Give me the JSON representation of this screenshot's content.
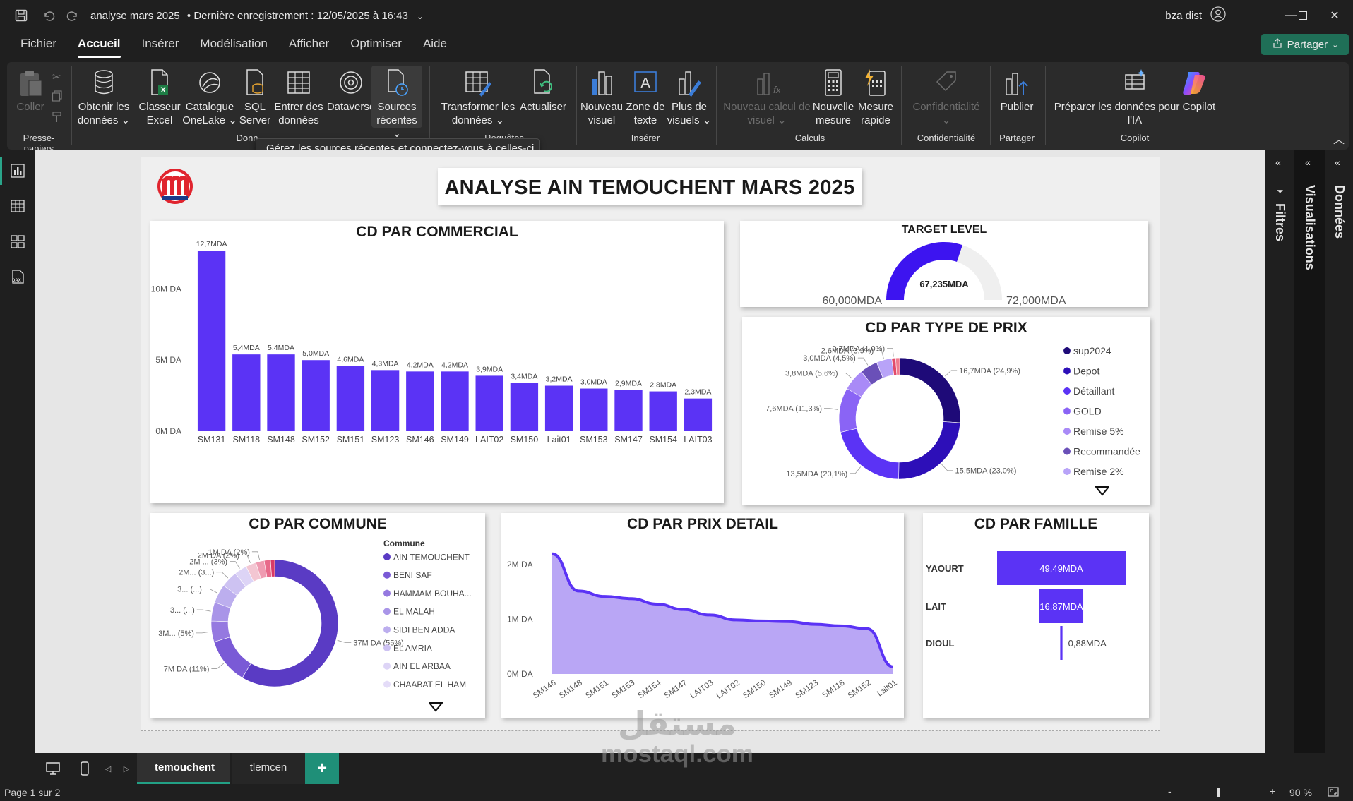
{
  "titlebar": {
    "document_title": "analyse mars 2025",
    "saved_status": "• Dernière enregistrement : 12/05/2025 à 16:43",
    "user_name": "bza dist"
  },
  "menu": {
    "items": [
      "Fichier",
      "Accueil",
      "Insérer",
      "Modélisation",
      "Afficher",
      "Optimiser",
      "Aide"
    ],
    "active": "Accueil",
    "share_label": "Partager"
  },
  "ribbon": {
    "paste": "Coller",
    "get_data": [
      "Obtenir les",
      "données ⌄"
    ],
    "excel": [
      "Classeur",
      "Excel"
    ],
    "onelake": [
      "Catalogue",
      "OneLake ⌄"
    ],
    "sql": [
      "SQL",
      "Server"
    ],
    "enter_data": [
      "Entrer des",
      "données"
    ],
    "dataverse": "Dataverse",
    "recent": [
      "Sources",
      "récentes ⌄"
    ],
    "transform": [
      "Transformer les",
      "données ⌄"
    ],
    "refresh": "Actualiser",
    "new_visual": [
      "Nouveau",
      "visuel"
    ],
    "text_box": [
      "Zone de",
      "texte"
    ],
    "more_visuals": [
      "Plus de",
      "visuels ⌄"
    ],
    "new_calc": [
      "Nouveau calcul de",
      "visuel ⌄"
    ],
    "new_measure": [
      "Nouvelle",
      "mesure"
    ],
    "quick_measure": [
      "Mesure",
      "rapide"
    ],
    "confidentiality": [
      "Confidentialité",
      "⌄"
    ],
    "publish": "Publier",
    "copilot_prep": [
      "Préparer les données pour Copilot",
      "l'IA"
    ],
    "groups": {
      "clipboard": "Presse-papiers",
      "data": "Donn",
      "queries": "Requêtes",
      "insert": "Insérer",
      "calcs": "Calculs",
      "confidentiality": "Confidentialité",
      "share": "Partager",
      "copilot": "Copilot"
    },
    "tooltip": "Gérez les sources récentes et connectez-vous à celles-ci."
  },
  "report": {
    "title": "ANALYSE AIN TEMOUCHENT MARS 2025",
    "bar_card_title": "CD PAR COMMERCIAL",
    "gauge_card_title": "TARGET LEVEL",
    "type_prix_title": "CD PAR TYPE DE PRIX",
    "commune_title": "CD PAR COMMUNE",
    "prix_detail_title": "CD PAR PRIX DETAIL",
    "famille_title": "CD PAR FAMILLE",
    "commune_legend_title": "Commune"
  },
  "chart_data": [
    {
      "type": "bar",
      "title": "CD PAR COMMERCIAL",
      "categories": [
        "SM131",
        "SM118",
        "SM148",
        "SM152",
        "SM151",
        "SM123",
        "SM146",
        "SM149",
        "LAIT02",
        "SM150",
        "Lait01",
        "SM153",
        "SM147",
        "SM154",
        "LAIT03"
      ],
      "values": [
        12.7,
        5.4,
        5.4,
        5.0,
        4.6,
        4.3,
        4.2,
        4.2,
        3.9,
        3.4,
        3.2,
        3.0,
        2.9,
        2.8,
        2.3
      ],
      "data_labels": [
        "12,7MDA",
        "5,4MDA",
        "5,4MDA",
        "5,0MDA",
        "4,6MDA",
        "4,3MDA",
        "4,2MDA",
        "4,2MDA",
        "3,9MDA",
        "3,4MDA",
        "3,2MDA",
        "3,0MDA",
        "2,9MDA",
        "2,8MDA",
        "2,3MDA"
      ],
      "y_ticks": [
        {
          "v": 0,
          "label": "0M DA"
        },
        {
          "v": 5,
          "label": "5M DA"
        },
        {
          "v": 10,
          "label": "10M DA"
        }
      ],
      "ylim": [
        0,
        13
      ],
      "color": "#5b33f5"
    },
    {
      "type": "gauge",
      "title": "TARGET LEVEL",
      "value": 67.235,
      "min": 60.0,
      "max": 72.0,
      "value_label": "67,235MDA",
      "min_label": "60,000MDA",
      "max_label": "72,000MDA",
      "color": "#3d14f0"
    },
    {
      "type": "pie",
      "title": "CD PAR TYPE DE PRIX",
      "slices": [
        {
          "label": "16,7MDA (24,9%)",
          "value": 24.9,
          "color": "#1e0a78"
        },
        {
          "label": "15,5MDA (23,0%)",
          "value": 23.0,
          "color": "#2d0fb8"
        },
        {
          "label": "13,5MDA (20,1%)",
          "value": 20.1,
          "color": "#5b33f5"
        },
        {
          "label": "7,6MDA (11,3%)",
          "value": 11.3,
          "color": "#8a64f5"
        },
        {
          "label": "3,8MDA (5,6%)",
          "value": 5.6,
          "color": "#a98af7"
        },
        {
          "label": "3,0MDA (4,5%)",
          "value": 4.5,
          "color": "#6a50b8"
        },
        {
          "label": "2,6MDA (3,9%)",
          "value": 3.9,
          "color": "#b8a3f8"
        },
        {
          "label": "0,7MDA (1,0%)",
          "value": 1.0,
          "color": "#e24a6a"
        },
        {
          "label": "",
          "value": 1.0,
          "color": "#f07a8e"
        }
      ],
      "legend": [
        {
          "name": "sup2024",
          "color": "#1e0a78"
        },
        {
          "name": "Depot",
          "color": "#2d0fb8"
        },
        {
          "name": "Détaillant",
          "color": "#5b33f5"
        },
        {
          "name": "GOLD",
          "color": "#8a64f5"
        },
        {
          "name": "Remise 5%",
          "color": "#a98af7"
        },
        {
          "name": "Recommandée",
          "color": "#6a50b8"
        },
        {
          "name": "Remise 2%",
          "color": "#b8a3f8"
        }
      ]
    },
    {
      "type": "pie",
      "title": "CD PAR COMMUNE",
      "slices": [
        {
          "label": "37M DA (55%)",
          "value": 55,
          "color": "#5a3bc4"
        },
        {
          "label": "7M DA (11%)",
          "value": 11,
          "color": "#7a5ad6"
        },
        {
          "label": "3M... (5%)",
          "value": 5,
          "color": "#9579e0"
        },
        {
          "label": "3... (...)",
          "value": 4.5,
          "color": "#a995e8"
        },
        {
          "label": "3... (...)",
          "value": 4.5,
          "color": "#bcaeee"
        },
        {
          "label": "2M... (3...)",
          "value": 4,
          "color": "#cdc2f2"
        },
        {
          "label": "2M ... (3%)",
          "value": 3,
          "color": "#ddd4f6"
        },
        {
          "label": "2M DA (2%)",
          "value": 2.5,
          "color": "#f3c6d2"
        },
        {
          "label": "1M DA (2%)",
          "value": 2,
          "color": "#ef9bb1"
        },
        {
          "label": "",
          "value": 1.5,
          "color": "#e86a8a"
        },
        {
          "label": "",
          "value": 1,
          "color": "#d93a66"
        }
      ],
      "legend": [
        {
          "name": "AIN TEMOUCHENT",
          "color": "#5a3bc4"
        },
        {
          "name": "BENI SAF",
          "color": "#7a5ad6"
        },
        {
          "name": "HAMMAM BOUHA...",
          "color": "#9579e0"
        },
        {
          "name": "EL MALAH",
          "color": "#a995e8"
        },
        {
          "name": "SIDI BEN ADDA",
          "color": "#bcaeee"
        },
        {
          "name": "EL AMRIA",
          "color": "#cdc2f2"
        },
        {
          "name": "AIN EL ARBAA",
          "color": "#ddd4f6"
        },
        {
          "name": "CHAABAT EL HAM",
          "color": "#e4dcf8"
        }
      ]
    },
    {
      "type": "area",
      "title": "CD PAR PRIX DETAIL",
      "categories": [
        "SM146",
        "SM148",
        "SM151",
        "SM153",
        "SM154",
        "SM147",
        "LAIT03",
        "LAIT02",
        "SM150",
        "SM149",
        "SM123",
        "SM118",
        "SM152",
        "Lait01"
      ],
      "values": [
        2.2,
        1.52,
        1.42,
        1.38,
        1.28,
        1.18,
        1.08,
        0.99,
        0.97,
        0.96,
        0.91,
        0.88,
        0.83,
        0.13
      ],
      "y_ticks": [
        {
          "v": 0,
          "label": "0M DA"
        },
        {
          "v": 1,
          "label": "1M DA"
        },
        {
          "v": 2,
          "label": "2M DA"
        }
      ],
      "ylim": [
        0,
        2.3
      ],
      "line_color": "#5b33f5",
      "fill_color": "#b9a6f5"
    },
    {
      "type": "bar",
      "title": "CD PAR FAMILLE",
      "orientation": "funnel",
      "categories": [
        "YAOURT",
        "LAIT",
        "DIOUL"
      ],
      "values": [
        49.49,
        16.87,
        0.88
      ],
      "data_labels": [
        "49,49MDA",
        "16,87MDA",
        "0,88MDA"
      ],
      "color": "#5b33f5"
    }
  ],
  "right_panes": [
    "Filtres",
    "Visualisations",
    "Données"
  ],
  "pages": {
    "tabs": [
      "temouchent",
      "tlemcen"
    ],
    "active": "temouchent"
  },
  "status": {
    "page": "Page 1 sur 2",
    "zoom": "90 %",
    "zoom_fraction": 0.45
  },
  "watermark": {
    "line1": "مستقل",
    "line2": "mostaql.com"
  }
}
